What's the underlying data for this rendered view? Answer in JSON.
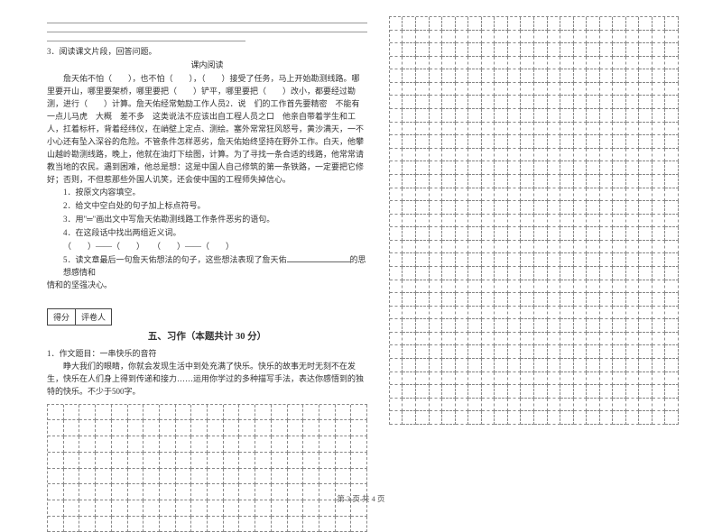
{
  "left": {
    "q3_head": "3．阅读课文片段，回答问题。",
    "reading_title": "课内阅读",
    "passage": "詹天佑不怕（　　），也不怕（　　），（　　）接受了任务，马上开始勘测线路。哪里要开山，哪里要架桥，哪里要把（　　）铲平，哪里要把（　　）改小，都要经过勘测，进行（　　）计算。詹天佑经常勉励工作人员2．说　们的工作首先要精密　不能有一点儿马虎　大概　差不多　这类说法不应该出自工程人员之口　他亲自带着学生和工人，扛着标杆，背着经纬仪，在峭壁上定点、测绘。塞外常常狂风怒号，黄沙满天，一不小心还有坠入深谷的危险。不管条件怎样恶劣，詹天佑始终坚持在野外工作。白天，他攀山越岭勘测线路，晚上，他就在油灯下绘图，计算。为了寻找一条合适的线路，他常常请教当地的农民。遇到困难，他总是想：这是中国人自己修筑的第一条铁路，一定要把它修好；否则，不但惹那些外国人讥笑，还会使中国的工程师失掉信心。",
    "sub1": "1．按原文内容填空。",
    "sub2": "2．给文中空白处的句子加上标点符号。",
    "sub3": "3．用\"═\"画出文中写詹天佑勘测线路工作条件恶劣的语句。",
    "sub4": "4．在这段话中找出两组近义词。",
    "sub4_line": "（　　）——（　　）　　（　　）——（　　）",
    "sub5_a": "5．读文章最后一句詹天佑想法的句子，这些想法表现了詹天佑",
    "sub5_b": "的思想感情和",
    "sub5_c": "的坚强决心。",
    "score_labels": [
      "得分",
      "评卷人"
    ],
    "section5_title": "五、习作（本题共计 30 分）",
    "essay_head": "1．作文题目：一串快乐的音符",
    "essay_body": "睁大我们的眼睛，你就会发现生活中到处充满了快乐。快乐的故事无时无刻不在发生，快乐在人们身上得到传递和接力……运用你学过的多种描写手法，表达你感悟到的独特的快乐。不少于500字。"
  },
  "right_grid": {
    "cols": 22,
    "rows": 31
  },
  "left_grid": {
    "cols": 20,
    "rows": 8
  },
  "footer": "第 3 页 共 4 页"
}
